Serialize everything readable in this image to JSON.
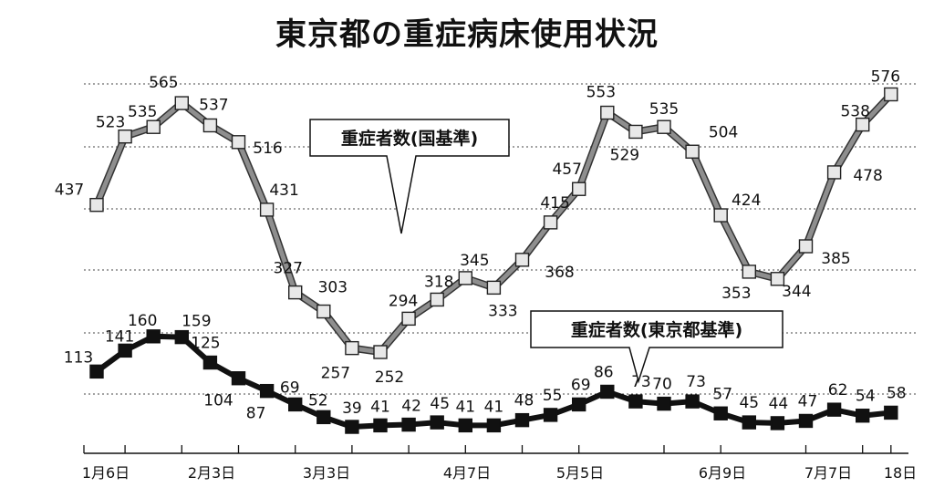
{
  "title": "東京都の重症病床使用状況",
  "chart_data": {
    "type": "line",
    "title": "東京都の重症病床使用状況",
    "xlabel": "",
    "ylabel": "",
    "grid": "horizontal dotted",
    "x_tick_labels": [
      "1月6日",
      "2月3日",
      "3月3日",
      "4月7日",
      "5月5日",
      "6月9日",
      "7月7日",
      "18日"
    ],
    "series": [
      {
        "name": "重症者数(国基準)",
        "marker": "light gray square",
        "color": "#8c8c8c",
        "values": [
          437,
          523,
          535,
          565,
          537,
          516,
          431,
          327,
          303,
          257,
          252,
          294,
          318,
          345,
          333,
          368,
          415,
          457,
          553,
          529,
          535,
          504,
          424,
          353,
          344,
          385,
          478,
          538,
          576
        ]
      },
      {
        "name": "重症者数(東京都基準)",
        "marker": "black square",
        "color": "#111111",
        "values": [
          113,
          141,
          160,
          159,
          125,
          104,
          87,
          69,
          52,
          39,
          41,
          42,
          45,
          41,
          41,
          48,
          55,
          69,
          86,
          73,
          70,
          73,
          57,
          45,
          44,
          47,
          62,
          54,
          58
        ]
      }
    ]
  }
}
